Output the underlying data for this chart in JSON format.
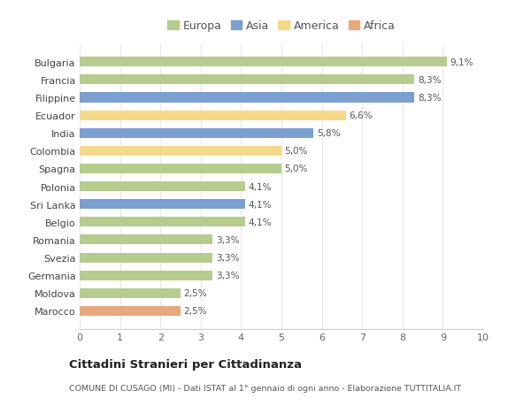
{
  "categories": [
    "Marocco",
    "Moldova",
    "Germania",
    "Svezia",
    "Romania",
    "Belgio",
    "Sri Lanka",
    "Polonia",
    "Spagna",
    "Colombia",
    "India",
    "Ecuador",
    "Filippine",
    "Francia",
    "Bulgaria"
  ],
  "values": [
    2.5,
    2.5,
    3.3,
    3.3,
    3.3,
    4.1,
    4.1,
    4.1,
    5.0,
    5.0,
    5.8,
    6.6,
    8.3,
    8.3,
    9.1
  ],
  "labels": [
    "2,5%",
    "2,5%",
    "3,3%",
    "3,3%",
    "3,3%",
    "4,1%",
    "4,1%",
    "4,1%",
    "5,0%",
    "5,0%",
    "5,8%",
    "6,6%",
    "8,3%",
    "8,3%",
    "9,1%"
  ],
  "continent": [
    "Africa",
    "Europa",
    "Europa",
    "Europa",
    "Europa",
    "Europa",
    "Asia",
    "Europa",
    "Europa",
    "America",
    "Asia",
    "America",
    "Asia",
    "Europa",
    "Europa"
  ],
  "colors": {
    "Europa": "#b5cc8e",
    "Asia": "#7b9fcf",
    "America": "#f5d98b",
    "Africa": "#e8a87c"
  },
  "legend_order": [
    "Europa",
    "Asia",
    "America",
    "Africa"
  ],
  "xlim": [
    0,
    10
  ],
  "xticks": [
    0,
    1,
    2,
    3,
    4,
    5,
    6,
    7,
    8,
    9,
    10
  ],
  "title": "Cittadini Stranieri per Cittadinanza",
  "subtitle": "COMUNE DI CUSAGO (MI) - Dati ISTAT al 1° gennaio di ogni anno - Elaborazione TUTTITALIA.IT",
  "background_color": "#ffffff",
  "grid_color": "#e8e8e8",
  "bar_height": 0.55
}
